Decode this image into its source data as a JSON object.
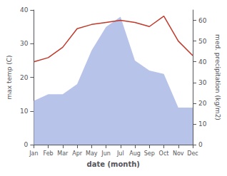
{
  "chart_data": {
    "type": "line",
    "categories": [
      "Jan",
      "Feb",
      "Mar",
      "Apr",
      "May",
      "Jun",
      "Jul",
      "Aug",
      "Sep",
      "Oct",
      "Nov",
      "Dec"
    ],
    "xlabel": "date (month)",
    "ylabel": "max temp (C)",
    "y2label": "med. precipitation (kg/m2)",
    "series": [
      {
        "type": "area",
        "color": "#b0bce8",
        "values": [
          13,
          15,
          15,
          18,
          28,
          35,
          38,
          25,
          22,
          21,
          11,
          11
        ]
      },
      {
        "type": "line",
        "color": "#c0392b",
        "axis": "y2",
        "values": [
          40,
          42,
          47,
          56,
          58,
          59,
          60,
          59,
          57,
          62,
          50,
          43
        ]
      }
    ],
    "ylim": [
      0,
      40
    ],
    "yticks": [
      0,
      10,
      20,
      30,
      40
    ],
    "y2lim": [
      0,
      65
    ],
    "y2ticks": [
      0,
      10,
      20,
      30,
      40,
      50,
      60
    ],
    "grid": false
  }
}
